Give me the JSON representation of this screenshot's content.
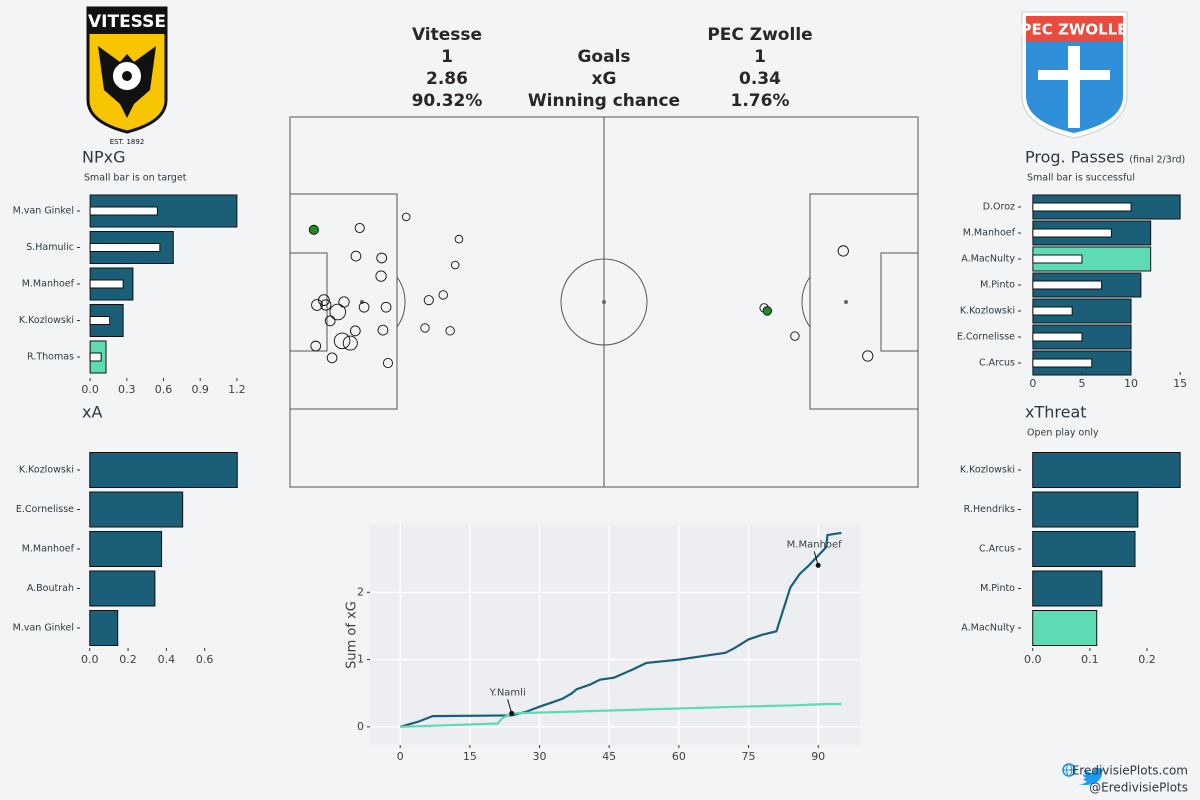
{
  "logos": {
    "home_name": "VITESSE",
    "home_est": "EST. 1892",
    "away_name": "PEC ZWOLLE"
  },
  "header": {
    "home_team": "Vitesse",
    "away_team": "PEC Zwolle",
    "rows": [
      {
        "label": "Goals",
        "home": "1",
        "away": "1"
      },
      {
        "label": "xG",
        "home": "2.86",
        "away": "0.34"
      },
      {
        "label": "Winning chance",
        "home": "90.32%",
        "away": "1.76%"
      }
    ]
  },
  "footer": {
    "website": "EredivisiePlots.com",
    "twitter": "@EredivisiePlots"
  },
  "chart_data": [
    {
      "type": "bar",
      "orientation": "horizontal",
      "title": "NPxG",
      "subtitle": "Small bar is on target",
      "categories": [
        "M.van Ginkel",
        "S.Hamulic",
        "M.Manhoef",
        "K.Kozlowski",
        "R.Thomas"
      ],
      "values": [
        1.2,
        0.68,
        0.35,
        0.27,
        0.13
      ],
      "inner_values": [
        0.55,
        0.57,
        0.27,
        0.16,
        0.09
      ],
      "colors": [
        "#1b5e77",
        "#1b5e77",
        "#1b5e77",
        "#1b5e77",
        "#5ddbb5"
      ],
      "xlim": [
        -0.05,
        1.25
      ],
      "xticks": [
        {
          "value": 0,
          "label": "0.0"
        },
        0.3,
        0.6,
        0.9,
        1.2
      ]
    },
    {
      "type": "bar",
      "orientation": "horizontal",
      "title": "xA",
      "categories": [
        "K.Kozlowski",
        "E.Cornelisse",
        "M.Manhoef",
        "A.Boutrah",
        "M.van Ginkel"
      ],
      "values": [
        0.77,
        0.485,
        0.375,
        0.34,
        0.146
      ],
      "colors": [
        "#1b5e77",
        "#1b5e77",
        "#1b5e77",
        "#1b5e77",
        "#1b5e77"
      ],
      "xlim": [
        -0.03,
        0.8
      ],
      "xticks": [
        {
          "value": 0,
          "label": "0.0"
        },
        0.2,
        0.4,
        0.6
      ]
    },
    {
      "type": "bar",
      "orientation": "horizontal",
      "title": "Prog. Passes",
      "title_note": "(final 2/3rd)",
      "subtitle": "Small bar is successful",
      "categories": [
        "D.Oroz",
        "M.Manhoef",
        "A.MacNulty",
        "M.Pinto",
        "K.Kozlowski",
        "E.Cornelisse",
        "C.Arcus"
      ],
      "values": [
        15,
        12,
        12,
        11,
        10,
        10,
        10
      ],
      "inner_values": [
        10,
        8,
        5,
        7,
        4,
        5,
        6
      ],
      "colors": [
        "#1b5e77",
        "#1b5e77",
        "#5ddbb5",
        "#1b5e77",
        "#1b5e77",
        "#1b5e77",
        "#1b5e77"
      ],
      "xlim": [
        -0.6,
        15.6
      ],
      "xticks": [
        0,
        5,
        10,
        15
      ]
    },
    {
      "type": "bar",
      "orientation": "horizontal",
      "title": "xThreat",
      "subtitle": "Open play only",
      "categories": [
        "K.Kozlowski",
        "R.Hendriks",
        "C.Arcus",
        "M.Pinto",
        "A.MacNulty"
      ],
      "values": [
        0.258,
        0.184,
        0.179,
        0.121,
        0.112
      ],
      "colors": [
        "#1b5e77",
        "#1b5e77",
        "#1b5e77",
        "#1b5e77",
        "#5ddbb5"
      ],
      "xlim": [
        -0.01,
        0.27
      ],
      "xticks": [
        {
          "value": 0,
          "label": "0.0"
        },
        0.1,
        0.2
      ]
    },
    {
      "type": "shotmap",
      "xlim": [
        0,
        100
      ],
      "ylim": [
        0,
        100
      ],
      "goal_color": "#228b22",
      "series": [
        {
          "x": [
            3.8,
            11.1,
            18.5,
            26.9,
            26.3,
            14.6,
            14.5,
            10.5,
            4.3,
            5.4,
            5.7,
            7.6,
            8.6,
            11.8,
            6.4,
            10.4,
            14.8,
            8.3,
            9.6,
            4.1,
            6.7,
            15.6,
            22.1,
            24.4,
            21.5,
            25.5,
            15.3
          ],
          "y": [
            30.5,
            30.0,
            27.0,
            33.0,
            40.0,
            38.1,
            43.0,
            37.6,
            50.8,
            49.5,
            50.8,
            52.7,
            50.0,
            51.4,
            55.1,
            57.8,
            57.6,
            60.5,
            61.1,
            61.9,
            65.1,
            66.5,
            49.5,
            48.1,
            57.0,
            57.8,
            51.4
          ],
          "sizes": [
            0.04,
            0.04,
            0.02,
            0.02,
            0.02,
            0.05,
            0.06,
            0.05,
            0.07,
            0.07,
            0.06,
            0.2,
            0.06,
            0.05,
            0.05,
            0.05,
            0.05,
            0.2,
            0.15,
            0.05,
            0.05,
            0.04,
            0.04,
            0.03,
            0.03,
            0.03,
            0.05
          ],
          "goals": [
            true,
            false,
            false,
            false,
            false,
            false,
            false,
            false,
            false,
            false,
            false,
            false,
            false,
            false,
            false,
            false,
            false,
            false,
            false,
            false,
            false,
            false,
            false,
            false,
            false,
            false,
            false
          ]
        },
        {
          "x": [
            88.1,
            75.5,
            76.0,
            80.4,
            92.0
          ],
          "y": [
            36.2,
            51.6,
            52.4,
            59.2,
            64.6
          ],
          "sizes": [
            0.06,
            0.03,
            0.03,
            0.03,
            0.06
          ],
          "goals": [
            false,
            false,
            true,
            false,
            false
          ]
        }
      ]
    },
    {
      "type": "line",
      "ylabel": "Sum of xG",
      "grid": true,
      "xlim": [
        -6.5,
        99
      ],
      "ylim": [
        -0.27,
        3.0
      ],
      "xticks": [
        0,
        15,
        30,
        45,
        60,
        75,
        90
      ],
      "yticks": [
        0,
        1,
        2
      ],
      "series": [
        {
          "color": "#1b5e77",
          "x": [
            0,
            4,
            7,
            24,
            27,
            30,
            33,
            35,
            37,
            38,
            41,
            43,
            46,
            50,
            53,
            60,
            65,
            70,
            72,
            75,
            78,
            81,
            84,
            86,
            88,
            91.7,
            92,
            94.7,
            95
          ],
          "values": [
            0,
            0.08,
            0.16,
            0.17,
            0.22,
            0.3,
            0.37,
            0.42,
            0.5,
            0.56,
            0.63,
            0.7,
            0.73,
            0.85,
            0.95,
            1.0,
            1.05,
            1.1,
            1.17,
            1.3,
            1.37,
            1.42,
            2.07,
            2.27,
            2.4,
            2.67,
            2.85,
            2.88,
            2.88
          ]
        },
        {
          "color": "#5ddbb5",
          "x": [
            0,
            21,
            22,
            24,
            73,
            85,
            92,
            95
          ],
          "values": [
            0,
            0.05,
            0.13,
            0.2,
            0.3,
            0.32,
            0.34,
            0.34
          ]
        }
      ],
      "annotations": [
        {
          "text": "M.Manhoef",
          "x": 90,
          "y": 2.4
        },
        {
          "text": "Y.Namli",
          "x": 24,
          "y": 0.2
        }
      ]
    }
  ]
}
